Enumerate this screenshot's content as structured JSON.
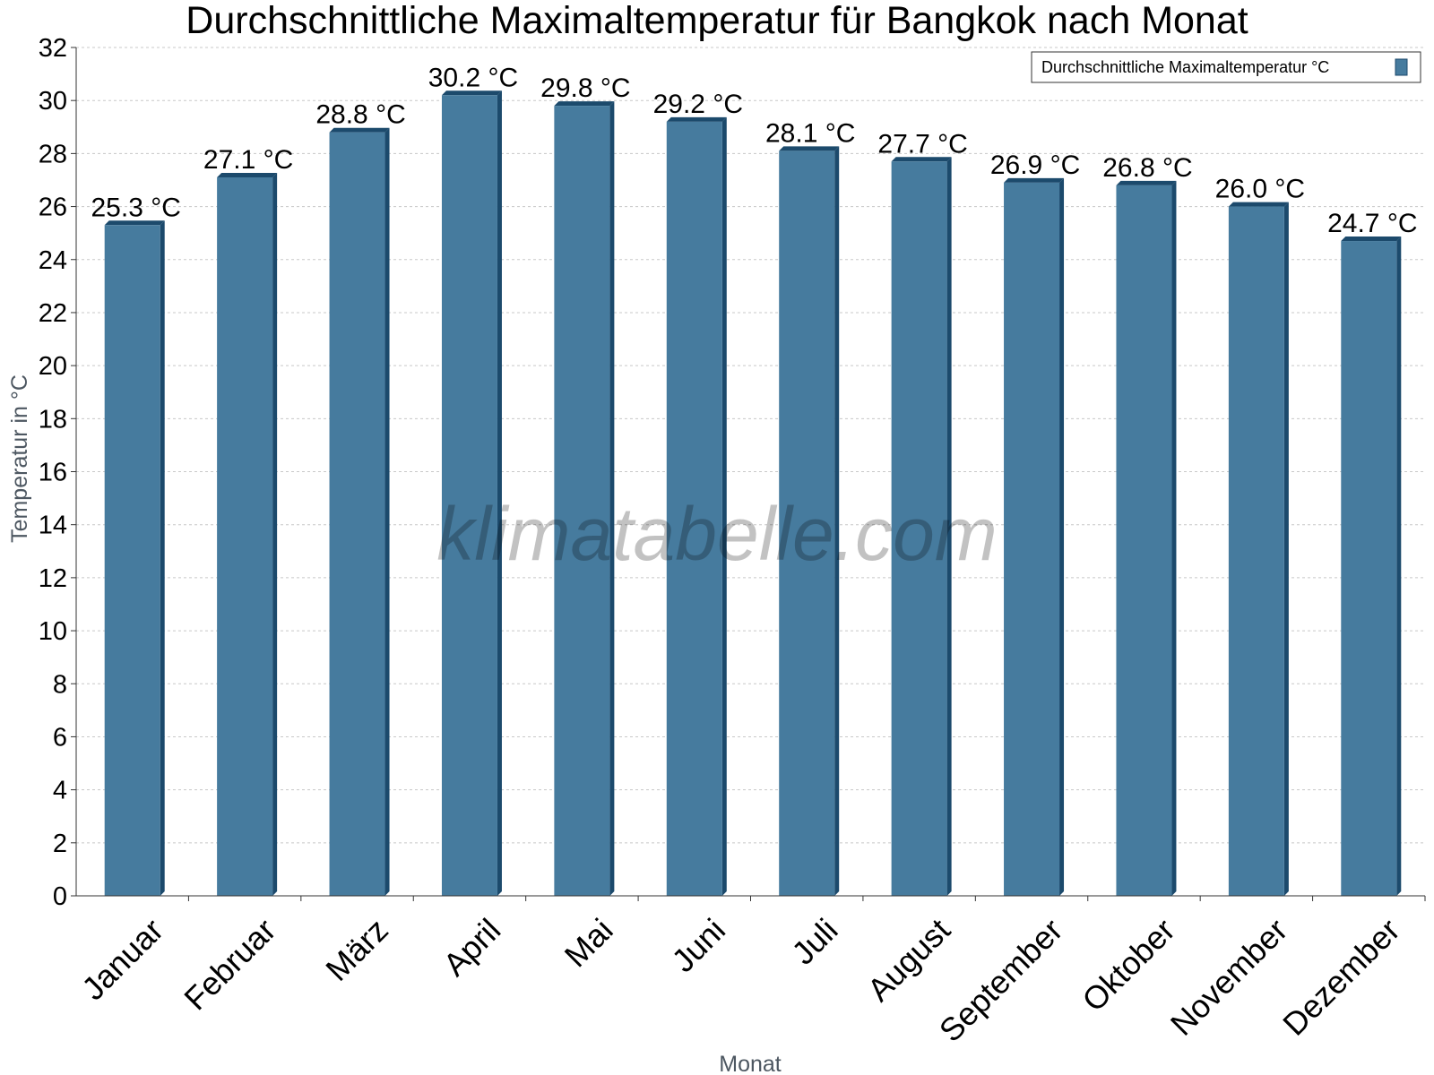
{
  "watermark": "klimatabelle.com",
  "colors": {
    "bar_face": "#467b9e",
    "bar_edge": "#1c4a6c",
    "grid": "#c8c8c8",
    "axis": "#333333"
  },
  "chart_data": {
    "type": "bar",
    "title": "Durchschnittliche Maximaltemperatur für Bangkok nach Monat",
    "xlabel": "Monat",
    "ylabel": "Temperatur in °C",
    "categories": [
      "Januar",
      "Februar",
      "März",
      "April",
      "Mai",
      "Juni",
      "Juli",
      "August",
      "September",
      "Oktober",
      "November",
      "Dezember"
    ],
    "series": [
      {
        "name": "Durchschnittliche Maximaltemperatur °C",
        "values": [
          25.3,
          27.1,
          28.8,
          30.2,
          29.8,
          29.2,
          28.1,
          27.7,
          26.9,
          26.8,
          26.0,
          24.7
        ],
        "labels": [
          "25.3 °C",
          "27.1 °C",
          "28.8 °C",
          "30.2 °C",
          "29.8 °C",
          "29.2 °C",
          "28.1 °C",
          "27.7 °C",
          "26.9 °C",
          "26.8 °C",
          "26.0 °C",
          "24.7 °C"
        ]
      }
    ],
    "ylim": [
      0,
      32
    ],
    "yticks": [
      0,
      2,
      4,
      6,
      8,
      10,
      12,
      14,
      16,
      18,
      20,
      22,
      24,
      26,
      28,
      30,
      32
    ],
    "grid": true,
    "legend_position": "top-right"
  }
}
